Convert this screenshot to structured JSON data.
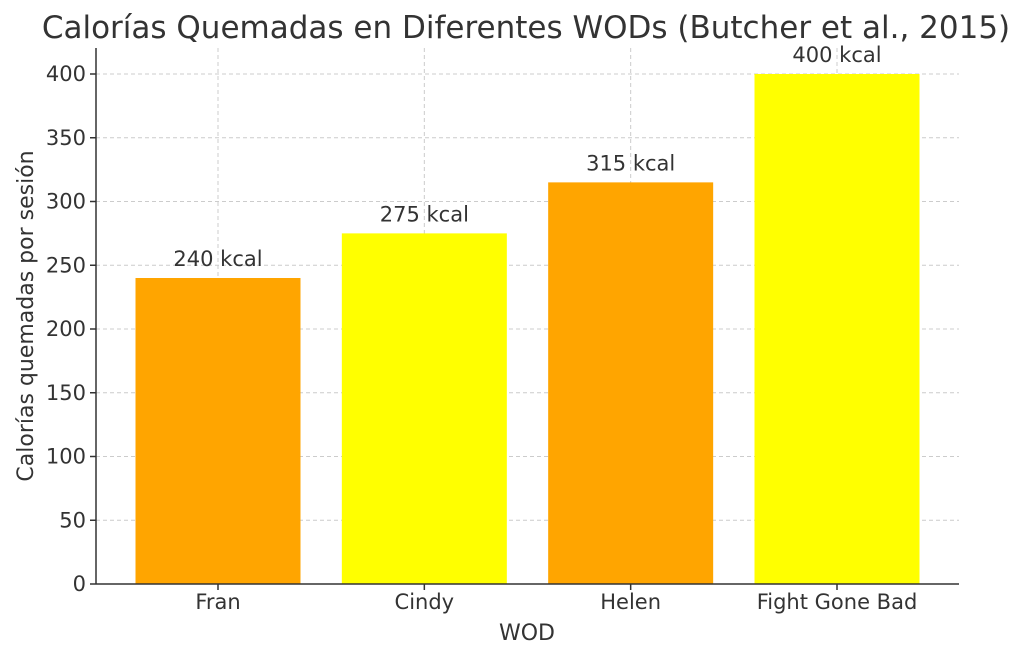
{
  "chart_data": {
    "type": "bar",
    "title": "Calorías Quemadas en Diferentes WODs (Butcher et al., 2015)",
    "xlabel": "WOD",
    "ylabel": "Calorías quemadas por sesión",
    "categories": [
      "Fran",
      "Cindy",
      "Helen",
      "Fight Gone Bad"
    ],
    "values": [
      240,
      275,
      315,
      400
    ],
    "data_labels": [
      "240 kcal",
      "275 kcal",
      "315 kcal",
      "400 kcal"
    ],
    "bar_colors": [
      "#FFA500",
      "#FFFF00",
      "#FFA500",
      "#FFFF00"
    ],
    "ylim": [
      0,
      400
    ],
    "yticks": [
      0,
      50,
      100,
      150,
      200,
      250,
      300,
      350,
      400
    ],
    "grid": true,
    "text_color": "#333333",
    "grid_color": "#cccccc"
  }
}
